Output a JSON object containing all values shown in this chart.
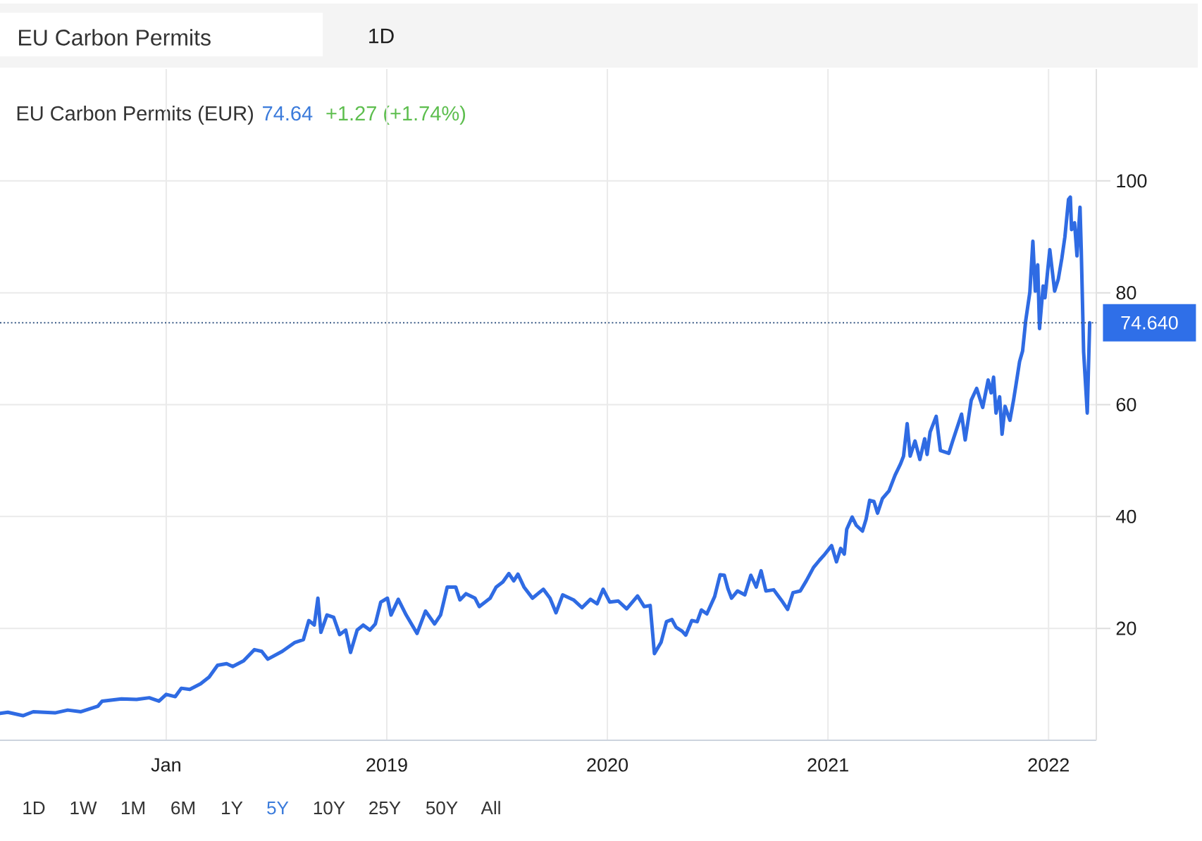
{
  "chart_data": {
    "type": "line",
    "title": "EU Carbon Permits",
    "subtitle": "EU Carbon Permits (EUR)",
    "annotations": [
      "1D",
      "74.64",
      "+1.27 (+1.74%)",
      "1D",
      "1W",
      "1M",
      "6M",
      "1Y",
      "5Y",
      "10Y",
      "25Y",
      "50Y",
      "All"
    ],
    "x": [
      "2017-04-01",
      "2017-04-14",
      "2017-05-09",
      "2017-05-26",
      "2017-07-01",
      "2017-07-22",
      "2017-08-13",
      "2017-09-10",
      "2017-09-17",
      "2017-10-19",
      "2017-11-13",
      "2017-12-04",
      "2017-12-20",
      "2018-01-01",
      "2018-01-16",
      "2018-01-26",
      "2018-02-09",
      "2018-02-27",
      "2018-03-13",
      "2018-03-27",
      "2018-04-11",
      "2018-04-21",
      "2018-05-09",
      "2018-05-27",
      "2018-06-08",
      "2018-06-18",
      "2018-07-12",
      "2018-08-02",
      "2018-08-16",
      "2018-08-25",
      "2018-09-03",
      "2018-09-09",
      "2018-09-14",
      "2018-09-24",
      "2018-10-05",
      "2018-10-15",
      "2018-10-25",
      "2018-11-02",
      "2018-11-13",
      "2018-11-23",
      "2018-12-04",
      "2018-12-13",
      "2018-12-22",
      "2019-01-02",
      "2019-01-08",
      "2019-01-20",
      "2019-02-02",
      "2019-02-20",
      "2019-03-06",
      "2019-03-21",
      "2019-03-31",
      "2019-04-11",
      "2019-04-25",
      "2019-05-02",
      "2019-05-12",
      "2019-05-27",
      "2019-06-03",
      "2019-06-21",
      "2019-07-01",
      "2019-07-12",
      "2019-07-22",
      "2019-07-30",
      "2019-08-06",
      "2019-08-16",
      "2019-08-30",
      "2019-09-17",
      "2019-09-28",
      "2019-10-08",
      "2019-10-19",
      "2019-11-06",
      "2019-11-20",
      "2019-12-04",
      "2019-12-15",
      "2019-12-25",
      "2020-01-05",
      "2020-01-19",
      "2020-02-02",
      "2020-02-20",
      "2020-03-02",
      "2020-03-12",
      "2020-03-19",
      "2020-03-30",
      "2020-04-08",
      "2020-04-17",
      "2020-04-24",
      "2020-05-04",
      "2020-05-10",
      "2020-05-20",
      "2020-05-29",
      "2020-06-05",
      "2020-06-14",
      "2020-06-27",
      "2020-07-06",
      "2020-07-13",
      "2020-07-19",
      "2020-07-25",
      "2020-08-04",
      "2020-08-16",
      "2020-08-26",
      "2020-09-04",
      "2020-09-12",
      "2020-09-20",
      "2020-10-03",
      "2020-10-16",
      "2020-10-26",
      "2020-11-04",
      "2020-11-16",
      "2020-11-26",
      "2020-12-08",
      "2020-12-18",
      "2020-12-27",
      "2021-01-07",
      "2021-01-15",
      "2021-01-22",
      "2021-01-28",
      "2021-02-01",
      "2021-02-10",
      "2021-02-17",
      "2021-02-27",
      "2021-03-05",
      "2021-03-11",
      "2021-03-18",
      "2021-03-24",
      "2021-04-01",
      "2021-04-12",
      "2021-04-22",
      "2021-05-01",
      "2021-05-06",
      "2021-05-12",
      "2021-05-17",
      "2021-05-25",
      "2021-06-02",
      "2021-06-10",
      "2021-06-14",
      "2021-06-19",
      "2021-06-29",
      "2021-07-06",
      "2021-07-20",
      "2021-07-26",
      "2021-08-10",
      "2021-08-16",
      "2021-08-26",
      "2021-09-04",
      "2021-09-14",
      "2021-09-23",
      "2021-09-28",
      "2021-10-02",
      "2021-10-06",
      "2021-10-12",
      "2021-10-16",
      "2021-10-21",
      "2021-10-29",
      "2021-11-04",
      "2021-11-08",
      "2021-11-14",
      "2021-11-19",
      "2021-11-24",
      "2021-12-01",
      "2021-12-06",
      "2021-12-10",
      "2021-12-14",
      "2021-12-17",
      "2021-12-23",
      "2021-12-26",
      "2022-01-03",
      "2022-01-11",
      "2022-01-17",
      "2022-01-23",
      "2022-01-28",
      "2022-02-03",
      "2022-02-06",
      "2022-02-08",
      "2022-02-13",
      "2022-02-17",
      "2022-02-22",
      "2022-02-24",
      "2022-02-28",
      "2022-03-06",
      "2022-03-10"
    ],
    "values": [
      4.8,
      5.0,
      4.4,
      5.1,
      4.9,
      5.4,
      5.1,
      6.1,
      7.0,
      7.4,
      7.3,
      7.6,
      7.0,
      8.2,
      7.8,
      9.3,
      9.1,
      10.1,
      11.3,
      13.4,
      13.7,
      13.2,
      14.2,
      16.2,
      15.9,
      14.5,
      15.9,
      17.5,
      18.0,
      21.4,
      20.6,
      25.4,
      19.3,
      22.4,
      22.0,
      18.9,
      19.7,
      15.7,
      19.7,
      20.6,
      19.7,
      20.8,
      24.7,
      25.4,
      22.4,
      25.2,
      22.4,
      19.1,
      23.1,
      20.8,
      22.4,
      27.4,
      27.4,
      25.1,
      26.2,
      25.4,
      23.9,
      25.4,
      27.4,
      28.3,
      29.8,
      28.5,
      29.7,
      27.4,
      25.4,
      27.0,
      25.4,
      22.8,
      26.0,
      25.1,
      23.7,
      25.2,
      24.4,
      27.0,
      24.7,
      24.9,
      23.5,
      25.8,
      23.9,
      24.1,
      15.5,
      17.5,
      21.2,
      21.6,
      20.2,
      19.5,
      18.8,
      21.4,
      21.2,
      23.3,
      22.6,
      25.7,
      29.6,
      29.5,
      27.1,
      25.4,
      26.7,
      26.0,
      29.5,
      27.4,
      30.3,
      26.7,
      26.9,
      25.0,
      23.4,
      26.4,
      26.7,
      28.5,
      30.9,
      32.2,
      33.3,
      34.8,
      31.9,
      34.3,
      33.3,
      37.7,
      39.9,
      38.4,
      37.4,
      39.5,
      42.9,
      42.7,
      40.6,
      43.2,
      44.6,
      47.4,
      49.4,
      50.8,
      56.6,
      50.8,
      53.5,
      50.2,
      53.9,
      51.1,
      55.1,
      57.9,
      51.8,
      51.3,
      53.4,
      58.3,
      53.7,
      60.8,
      62.9,
      59.5,
      64.4,
      62.1,
      64.9,
      58.5,
      61.4,
      54.7,
      59.7,
      57.2,
      60.8,
      63.5,
      67.7,
      69.6,
      74.9,
      80.1,
      89.2,
      80.3,
      85.0,
      73.6,
      81.2,
      79.1,
      87.7,
      80.3,
      82.4,
      86.2,
      90.0,
      96.7,
      97.1,
      91.3,
      92.5,
      86.6,
      95.3,
      87.9,
      69.4,
      58.5,
      74.64
    ],
    "color": "#2f6be3",
    "xlim": [
      "2017-04-01",
      "2022-03-21"
    ],
    "ylim": [
      0,
      120
    ],
    "xticks": [
      {
        "value": "2018-01-01",
        "label": "Jan"
      },
      {
        "value": "2019-01-01",
        "label": "2019"
      },
      {
        "value": "2020-01-01",
        "label": "2020"
      },
      {
        "value": "2021-01-01",
        "label": "2021"
      },
      {
        "value": "2022-01-01",
        "label": "2022"
      }
    ],
    "yticks": [
      20,
      40,
      60,
      80,
      100
    ],
    "ref_lines": [
      {
        "axis": "y",
        "value": 74.64,
        "label": "74.640",
        "color": "#3a5a85",
        "line_style": "dotted"
      }
    ],
    "grid": true
  }
}
